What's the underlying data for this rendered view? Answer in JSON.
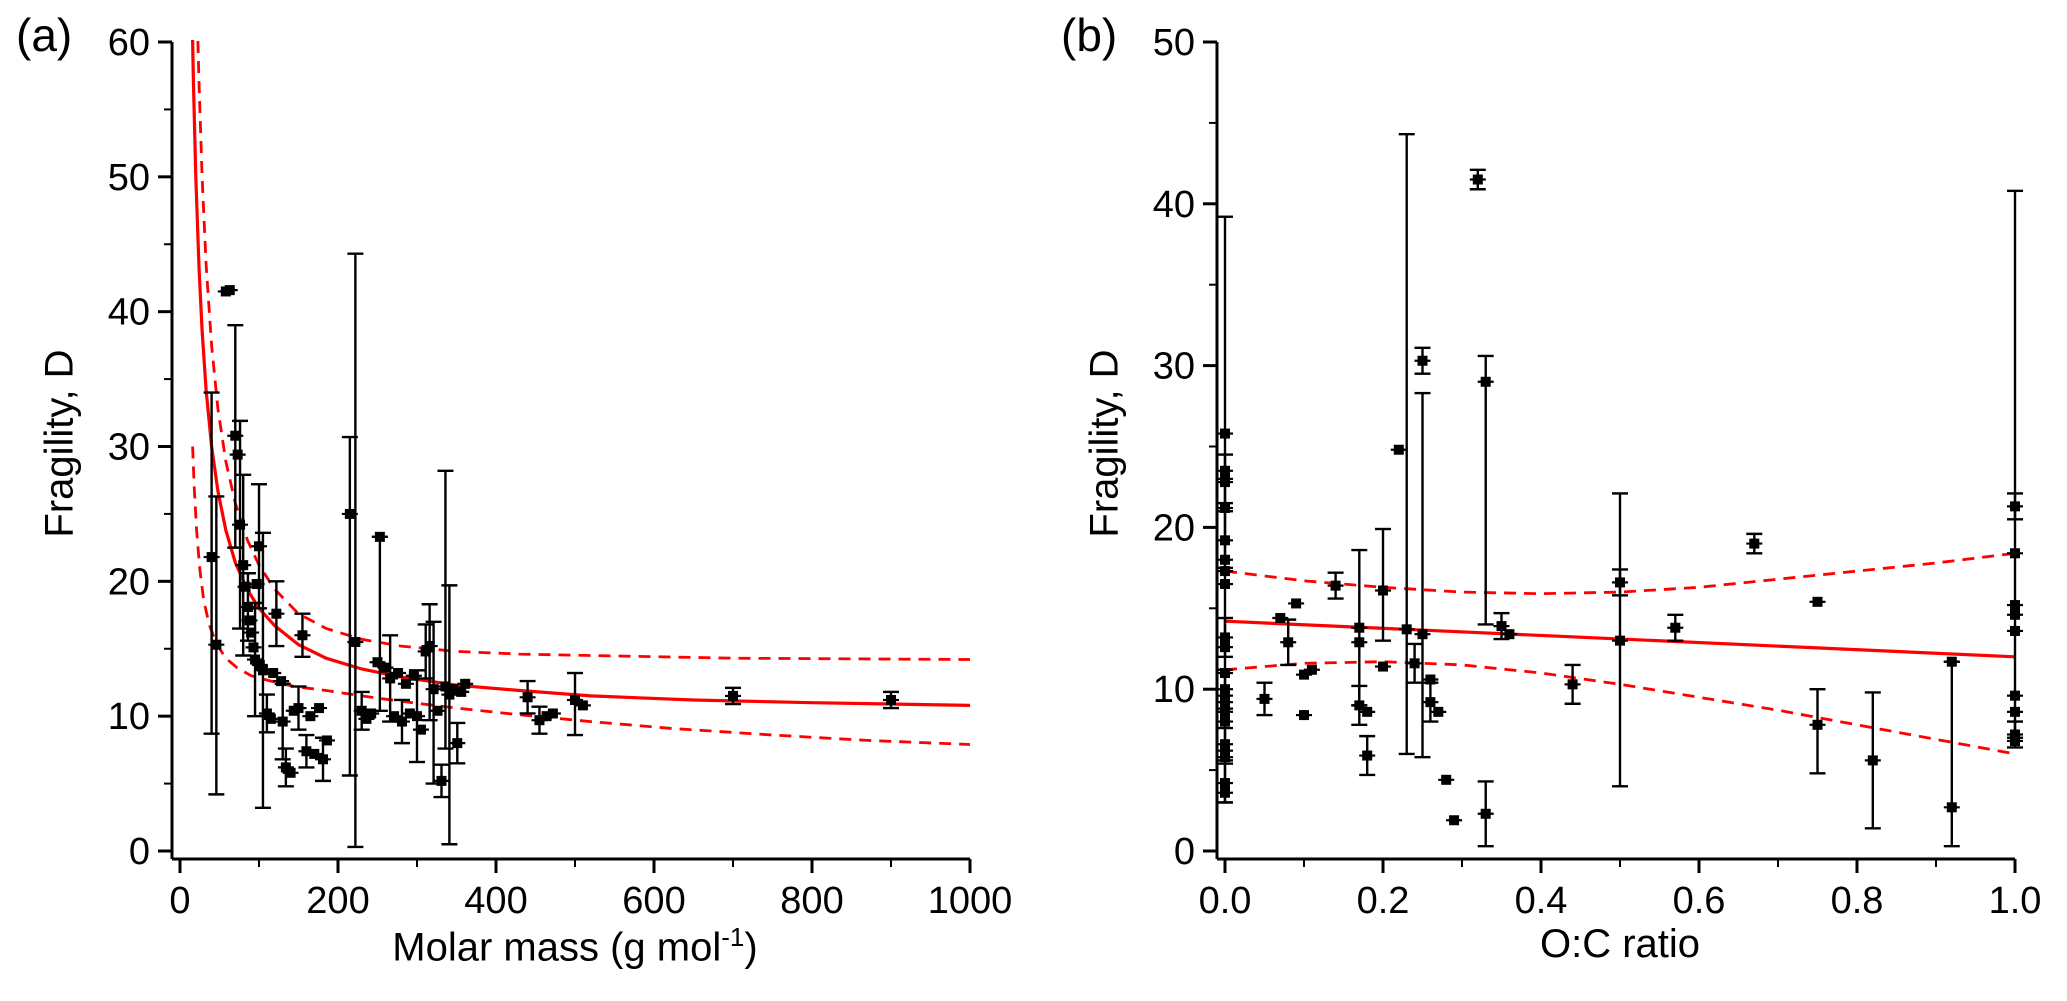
{
  "colors": {
    "fit": "#ff0000",
    "marker": "#000000",
    "axis": "#000000",
    "background": "#ffffff"
  },
  "chart_data": [
    {
      "id": "a",
      "type": "scatter",
      "panel_label": "(a)",
      "title": "",
      "xlabel_main": "Molar mass (g mol",
      "xlabel_sup": "-1",
      "xlabel_end": ")",
      "ylabel": "Fragility, D",
      "xlim": [
        0,
        1000
      ],
      "ylim": [
        0,
        60
      ],
      "grid": false,
      "legend": "none",
      "x_ticks": {
        "values": [
          0,
          200,
          400,
          600,
          800,
          1000
        ],
        "labels": [
          "0",
          "200",
          "400",
          "600",
          "800",
          "1000"
        ],
        "minor": [
          100,
          300,
          500,
          700,
          900
        ]
      },
      "y_ticks": {
        "values": [
          0,
          10,
          20,
          30,
          40,
          50,
          60
        ],
        "labels": [
          "0",
          "10",
          "20",
          "30",
          "40",
          "50",
          "60"
        ],
        "minor": [
          5,
          15,
          25,
          35,
          45,
          55
        ]
      },
      "fit": {
        "solid": [
          [
            13,
            71.5
          ],
          [
            15,
            63.3
          ],
          [
            17,
            57.1
          ],
          [
            20,
            50
          ],
          [
            24,
            43.3
          ],
          [
            28,
            38.6
          ],
          [
            33,
            34.2
          ],
          [
            40,
            30
          ],
          [
            48,
            26.7
          ],
          [
            58,
            23.8
          ],
          [
            70,
            21.4
          ],
          [
            85,
            19.4
          ],
          [
            100,
            18
          ],
          [
            120,
            16.7
          ],
          [
            150,
            15.3
          ],
          [
            185,
            14.3
          ],
          [
            230,
            13.5
          ],
          [
            280,
            12.9
          ],
          [
            350,
            12.3
          ],
          [
            430,
            11.9
          ],
          [
            520,
            11.5
          ],
          [
            650,
            11.2
          ],
          [
            800,
            11.0
          ],
          [
            1000,
            10.8
          ]
        ],
        "upper_dashed": [
          [
            20,
            66
          ],
          [
            24,
            57
          ],
          [
            28,
            50
          ],
          [
            33,
            43.5
          ],
          [
            40,
            37.5
          ],
          [
            48,
            32.8
          ],
          [
            58,
            28.9
          ],
          [
            70,
            25.8
          ],
          [
            85,
            23.1
          ],
          [
            100,
            21.2
          ],
          [
            120,
            19.4
          ],
          [
            150,
            17.6
          ],
          [
            185,
            16.5
          ],
          [
            230,
            15.7
          ],
          [
            280,
            15.2
          ],
          [
            350,
            14.8
          ],
          [
            430,
            14.6
          ],
          [
            520,
            14.5
          ],
          [
            700,
            14.3
          ],
          [
            1000,
            14.2
          ]
        ],
        "lower_dashed": [
          [
            16,
            30
          ],
          [
            18,
            27
          ],
          [
            21,
            23.8
          ],
          [
            25,
            20.9
          ],
          [
            30,
            18.6
          ],
          [
            37,
            16.8
          ],
          [
            46,
            15.4
          ],
          [
            58,
            14.3
          ],
          [
            72,
            13.6
          ],
          [
            90,
            13.0
          ],
          [
            115,
            12.6
          ],
          [
            145,
            12.2
          ],
          [
            185,
            11.9
          ],
          [
            230,
            11.5
          ],
          [
            280,
            11.1
          ],
          [
            350,
            10.6
          ],
          [
            430,
            10.1
          ],
          [
            520,
            9.6
          ],
          [
            620,
            9.1
          ],
          [
            750,
            8.6
          ],
          [
            870,
            8.2
          ],
          [
            1000,
            7.9
          ]
        ]
      },
      "points": [
        [
          40,
          21.8,
          8.7,
          34.0
        ],
        [
          46,
          15.3,
          4.2,
          26.3
        ],
        [
          58,
          41.5
        ],
        [
          63,
          41.6
        ],
        [
          70,
          30.8,
          22.5,
          39.0
        ],
        [
          73,
          29.4
        ],
        [
          76,
          24.2,
          16.5,
          31.9
        ],
        [
          80,
          21.2,
          14.5,
          27.9
        ],
        [
          83,
          19.6
        ],
        [
          86,
          18.1,
          15.6,
          20.6
        ],
        [
          88,
          17.1
        ],
        [
          90,
          16.2
        ],
        [
          93,
          15.1
        ],
        [
          95,
          14.2,
          10.0,
          18.4
        ],
        [
          97,
          19.8
        ],
        [
          100,
          22.6,
          18.0,
          27.2
        ],
        [
          101,
          13.8
        ],
        [
          105,
          13.4,
          3.2,
          23.6
        ],
        [
          110,
          10.2,
          8.8,
          11.6
        ],
        [
          115,
          9.8
        ],
        [
          118,
          13.2
        ],
        [
          122,
          17.6,
          15.2,
          20.0
        ],
        [
          128,
          12.6
        ],
        [
          130,
          9.6,
          6.8,
          12.4
        ],
        [
          134,
          6.2,
          4.8,
          7.6
        ],
        [
          140,
          5.8
        ],
        [
          144,
          10.4
        ],
        [
          150,
          10.6,
          9.0,
          12.2
        ],
        [
          155,
          16.0,
          14.4,
          17.6
        ],
        [
          160,
          7.4,
          6.2,
          8.6
        ],
        [
          165,
          10.0
        ],
        [
          170,
          7.2
        ],
        [
          176,
          10.6
        ],
        [
          181,
          6.8,
          5.2,
          8.4
        ],
        [
          186,
          8.2
        ],
        [
          215,
          25.0,
          5.6,
          30.7
        ],
        [
          222,
          15.5,
          0.3,
          44.3
        ],
        [
          230,
          10.4,
          9.0,
          11.8
        ],
        [
          236,
          9.8
        ],
        [
          242,
          10.2
        ],
        [
          250,
          14.0
        ],
        [
          253,
          23.3,
          10.4,
          23.3
        ],
        [
          260,
          13.6
        ],
        [
          266,
          12.8,
          9.6,
          16.0
        ],
        [
          271,
          10.0
        ],
        [
          276,
          13.2
        ],
        [
          281,
          9.6,
          8.0,
          11.2
        ],
        [
          286,
          12.4
        ],
        [
          291,
          10.2
        ],
        [
          296,
          13.0
        ],
        [
          300,
          10.0,
          6.6,
          13.4
        ],
        [
          305,
          9.0
        ],
        [
          311,
          14.8,
          12.8,
          16.8
        ],
        [
          316,
          15.2,
          9.7,
          18.3
        ],
        [
          321,
          12.0,
          5.0,
          17.0
        ],
        [
          326,
          10.4
        ],
        [
          331,
          5.2,
          4.0,
          6.4
        ],
        [
          336,
          12.2,
          7.6,
          28.2
        ],
        [
          341,
          11.6,
          0.5,
          19.7
        ],
        [
          346,
          12.0
        ],
        [
          351,
          8.0,
          6.5,
          9.5
        ],
        [
          356,
          11.8
        ],
        [
          361,
          12.4
        ],
        [
          440,
          11.4,
          10.2,
          12.6
        ],
        [
          455,
          9.7,
          8.7,
          10.7
        ],
        [
          464,
          10.0
        ],
        [
          472,
          10.2
        ],
        [
          500,
          11.2,
          8.6,
          13.2
        ],
        [
          510,
          10.8
        ],
        [
          700,
          11.5,
          10.9,
          12.1
        ],
        [
          900,
          11.2,
          10.6,
          11.8
        ]
      ]
    },
    {
      "id": "b",
      "type": "scatter",
      "panel_label": "(b)",
      "title": "",
      "xlabel": "O:C ratio",
      "ylabel": "Fragility, D",
      "xlim": [
        0,
        1.0
      ],
      "ylim": [
        0,
        50
      ],
      "grid": false,
      "legend": "none",
      "x_ticks": {
        "values": [
          0,
          0.2,
          0.4,
          0.6,
          0.8,
          1.0
        ],
        "labels": [
          "0.0",
          "0.2",
          "0.4",
          "0.6",
          "0.8",
          "1.0"
        ],
        "minor": [
          0.1,
          0.3,
          0.5,
          0.7,
          0.9
        ]
      },
      "y_ticks": {
        "values": [
          0,
          10,
          20,
          30,
          40,
          50
        ],
        "labels": [
          "0",
          "10",
          "20",
          "30",
          "40",
          "50"
        ],
        "minor": [
          5,
          15,
          25,
          35,
          45
        ]
      },
      "fit": {
        "solid": [
          [
            0,
            14.2
          ],
          [
            1.0,
            12.0
          ]
        ],
        "upper_dashed": [
          [
            0,
            17.3
          ],
          [
            0.1,
            16.7
          ],
          [
            0.2,
            16.3
          ],
          [
            0.3,
            16.0
          ],
          [
            0.4,
            15.9
          ],
          [
            0.5,
            16.0
          ],
          [
            0.6,
            16.3
          ],
          [
            0.7,
            16.8
          ],
          [
            0.8,
            17.3
          ],
          [
            0.9,
            17.8
          ],
          [
            1.0,
            18.4
          ]
        ],
        "lower_dashed": [
          [
            0,
            11.2
          ],
          [
            0.1,
            11.6
          ],
          [
            0.2,
            11.7
          ],
          [
            0.3,
            11.5
          ],
          [
            0.4,
            11.0
          ],
          [
            0.5,
            10.3
          ],
          [
            0.6,
            9.5
          ],
          [
            0.7,
            8.7
          ],
          [
            0.8,
            7.8
          ],
          [
            0.9,
            6.9
          ],
          [
            1.0,
            6.0
          ]
        ]
      },
      "points": [
        [
          0,
          23.5,
          3.0,
          39.2
        ],
        [
          0,
          25.8
        ],
        [
          0,
          23.0,
          21.5,
          24.5
        ],
        [
          0,
          22.8
        ],
        [
          0,
          21.2
        ],
        [
          0,
          19.2,
          17.5,
          21.0
        ],
        [
          0,
          18.0
        ],
        [
          0,
          17.3
        ],
        [
          0,
          16.5
        ],
        [
          0,
          13.2,
          12.0,
          14.4
        ],
        [
          0,
          12.6
        ],
        [
          0,
          11.0
        ],
        [
          0,
          10.0,
          8.8,
          11.2
        ],
        [
          0,
          9.6
        ],
        [
          0,
          9.2
        ],
        [
          0,
          8.6
        ],
        [
          0,
          8.0
        ],
        [
          0,
          6.6,
          5.6,
          7.6
        ],
        [
          0,
          6.2
        ],
        [
          0,
          5.8
        ],
        [
          0,
          4.2,
          3.0,
          5.4
        ],
        [
          0,
          3.6
        ],
        [
          0.05,
          9.4,
          8.4,
          10.4
        ],
        [
          0.07,
          14.4
        ],
        [
          0.08,
          12.9,
          11.5,
          14.3
        ],
        [
          0.09,
          15.3
        ],
        [
          0.1,
          10.9
        ],
        [
          0.1,
          8.4
        ],
        [
          0.11,
          11.2
        ],
        [
          0.14,
          16.4,
          15.6,
          17.2
        ],
        [
          0.17,
          13.8,
          9.0,
          18.6
        ],
        [
          0.17,
          12.9
        ],
        [
          0.17,
          9.0,
          7.8,
          10.2
        ],
        [
          0.18,
          8.6
        ],
        [
          0.18,
          5.9,
          4.7,
          7.1
        ],
        [
          0.2,
          16.1,
          13.0,
          19.9
        ],
        [
          0.2,
          11.4
        ],
        [
          0.22,
          24.8
        ],
        [
          0.23,
          13.7,
          6.0,
          44.3
        ],
        [
          0.24,
          11.6,
          10.4,
          12.8
        ],
        [
          0.25,
          30.3,
          29.5,
          31.1
        ],
        [
          0.25,
          13.4,
          5.8,
          28.3
        ],
        [
          0.26,
          10.6
        ],
        [
          0.26,
          9.2,
          8.0,
          10.4
        ],
        [
          0.27,
          8.6
        ],
        [
          0.28,
          4.4
        ],
        [
          0.29,
          1.9
        ],
        [
          0.32,
          41.5,
          40.9,
          42.1
        ],
        [
          0.33,
          29.0,
          14.0,
          30.6
        ],
        [
          0.33,
          2.3,
          0.3,
          4.3
        ],
        [
          0.35,
          13.9,
          13.1,
          14.7
        ],
        [
          0.36,
          13.4
        ],
        [
          0.44,
          10.3,
          9.1,
          11.5
        ],
        [
          0.5,
          16.6,
          15.8,
          17.4
        ],
        [
          0.5,
          13.0,
          4.0,
          22.1
        ],
        [
          0.57,
          13.8,
          13.0,
          14.6
        ],
        [
          0.67,
          19.0,
          18.4,
          19.6
        ],
        [
          0.75,
          15.4
        ],
        [
          0.75,
          7.8,
          4.8,
          10.0
        ],
        [
          0.82,
          5.6,
          1.4,
          9.8
        ],
        [
          0.92,
          11.7
        ],
        [
          0.92,
          2.7,
          0.3,
          11.7
        ],
        [
          1.0,
          21.3,
          20.5,
          22.1
        ],
        [
          1.0,
          18.4,
          7.0,
          40.8
        ],
        [
          1.0,
          15.2
        ],
        [
          1.0,
          14.6
        ],
        [
          1.0,
          13.6
        ],
        [
          1.0,
          9.6
        ],
        [
          1.0,
          8.6
        ],
        [
          1.0,
          7.2,
          6.4,
          8.0
        ],
        [
          1.0,
          6.8
        ]
      ]
    }
  ]
}
